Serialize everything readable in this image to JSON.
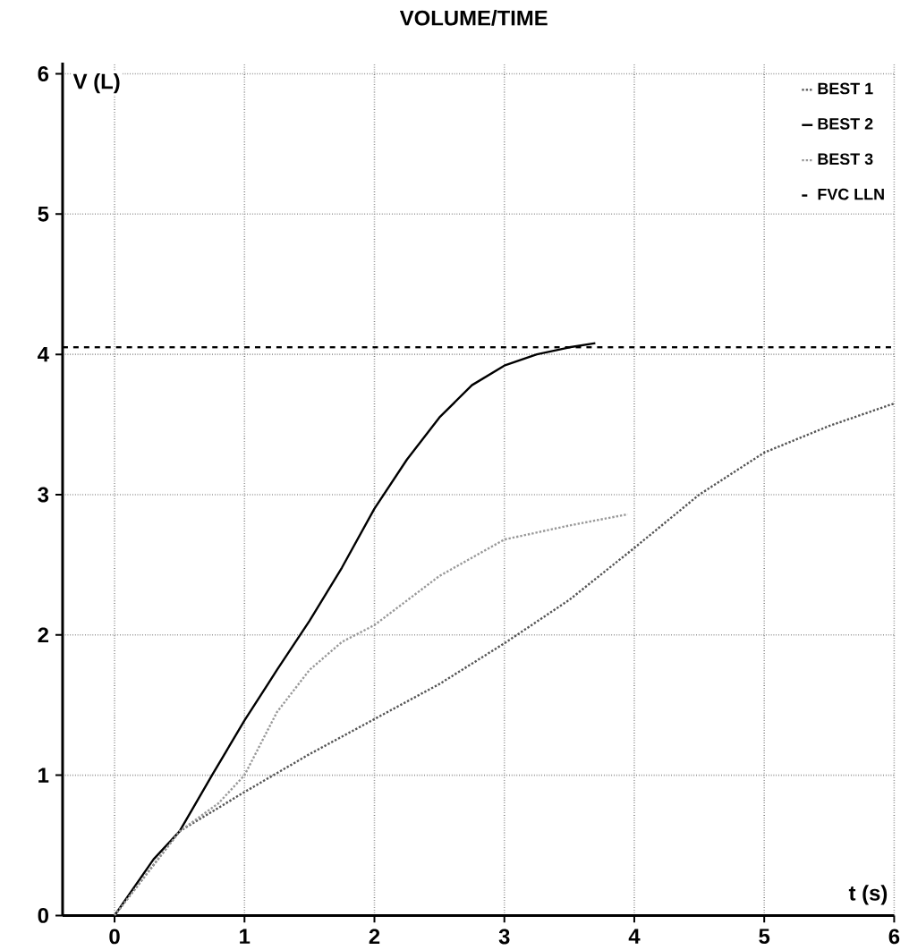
{
  "chart_data": {
    "type": "line",
    "title": "VOLUME/TIME",
    "xlabel": "t (s)",
    "ylabel": "V (L)",
    "xlim": [
      -0.4,
      6
    ],
    "ylim": [
      0,
      6.08
    ],
    "xticks": [
      0,
      1,
      2,
      3,
      4,
      5,
      6
    ],
    "yticks": [
      0,
      1,
      2,
      3,
      4,
      5,
      6
    ],
    "grid": true,
    "legend": "top right",
    "series": [
      {
        "name": "BEST 1",
        "color": "#555555",
        "line_style": "dotted",
        "x": [
          0,
          0.5,
          1,
          1.5,
          2,
          2.5,
          3,
          3.5,
          4,
          4.5,
          5,
          5.5,
          6
        ],
        "values": [
          0,
          0.6,
          0.88,
          1.15,
          1.4,
          1.65,
          1.94,
          2.25,
          2.62,
          3.0,
          3.3,
          3.49,
          3.65
        ]
      },
      {
        "name": "BEST 2",
        "color": "#000000",
        "line_style": "solid",
        "x": [
          0,
          0.3,
          0.5,
          0.75,
          1,
          1.25,
          1.5,
          1.75,
          2,
          2.25,
          2.5,
          2.75,
          3,
          3.25,
          3.5,
          3.7
        ],
        "values": [
          0,
          0.4,
          0.6,
          1.0,
          1.39,
          1.75,
          2.1,
          2.48,
          2.9,
          3.25,
          3.55,
          3.78,
          3.92,
          4.0,
          4.05,
          4.08
        ]
      },
      {
        "name": "BEST 3",
        "color": "#999999",
        "line_style": "dotted",
        "x": [
          0,
          0.5,
          0.8,
          1,
          1.25,
          1.5,
          1.75,
          2,
          2.5,
          3,
          3.5,
          3.95
        ],
        "values": [
          0,
          0.6,
          0.8,
          1.0,
          1.45,
          1.75,
          1.95,
          2.07,
          2.42,
          2.68,
          2.78,
          2.86
        ]
      }
    ],
    "ref_lines": [
      {
        "axis": "y",
        "value": 4.05,
        "label": "FVC LLN",
        "color": "#000000",
        "line_style": "dashed"
      }
    ]
  }
}
